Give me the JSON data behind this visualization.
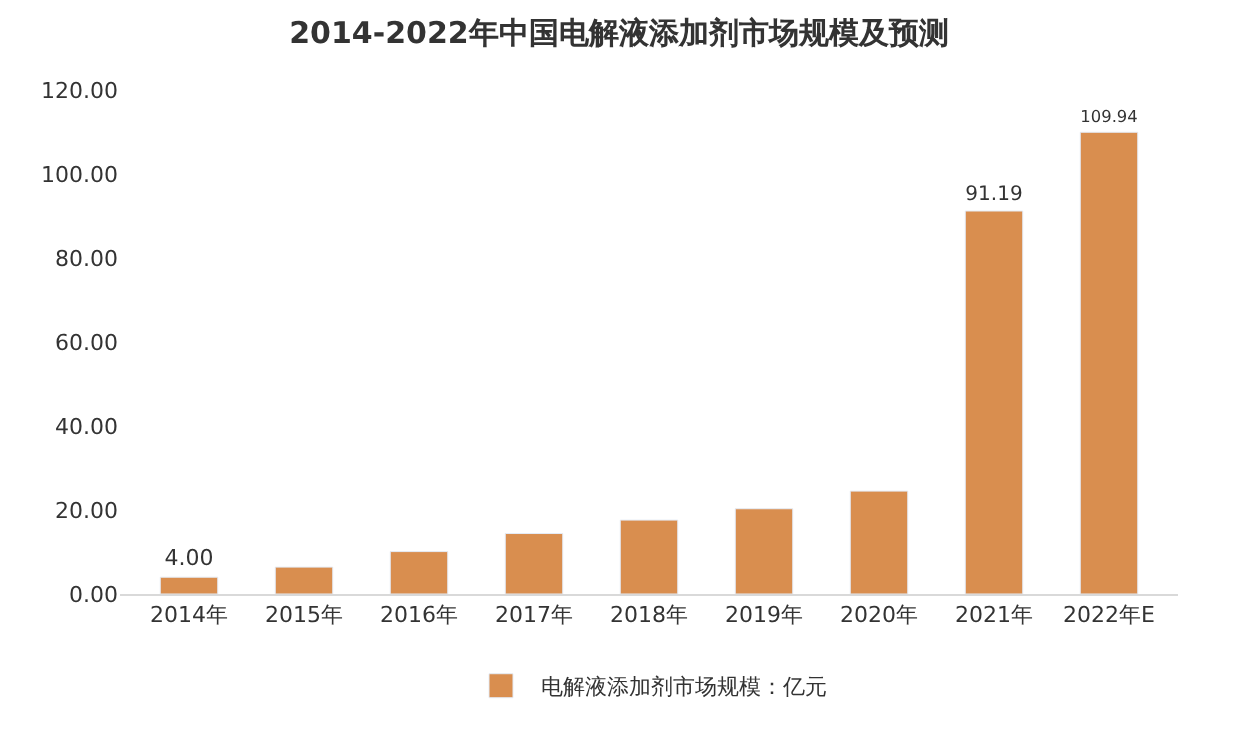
{
  "chart_data": {
    "type": "bar",
    "title": "2014-2022年中国电解液添加剂市场规模及预测",
    "categories": [
      "2014年",
      "2015年",
      "2016年",
      "2017年",
      "2018年",
      "2019年",
      "2020年",
      "2021年",
      "2022年E"
    ],
    "series": [
      {
        "name": "电解液添加剂市场规模：亿元",
        "color": "#d98e4f",
        "values": [
          4.0,
          6.4,
          10.1,
          14.4,
          17.6,
          20.3,
          24.5,
          91.19,
          109.94
        ],
        "value_labels": [
          "4.00",
          null,
          null,
          null,
          null,
          null,
          null,
          "91.19",
          "109.94"
        ]
      }
    ],
    "ylim": [
      0,
      120
    ],
    "yticks": [
      {
        "value": 0,
        "label": "0.00"
      },
      {
        "value": 20,
        "label": "20.00"
      },
      {
        "value": 40,
        "label": "40.00"
      },
      {
        "value": 60,
        "label": "60.00"
      },
      {
        "value": 80,
        "label": "80.00"
      },
      {
        "value": 100,
        "label": "100.00"
      },
      {
        "value": 120,
        "label": "120.00"
      }
    ],
    "grid": false,
    "legend": "bottom"
  }
}
